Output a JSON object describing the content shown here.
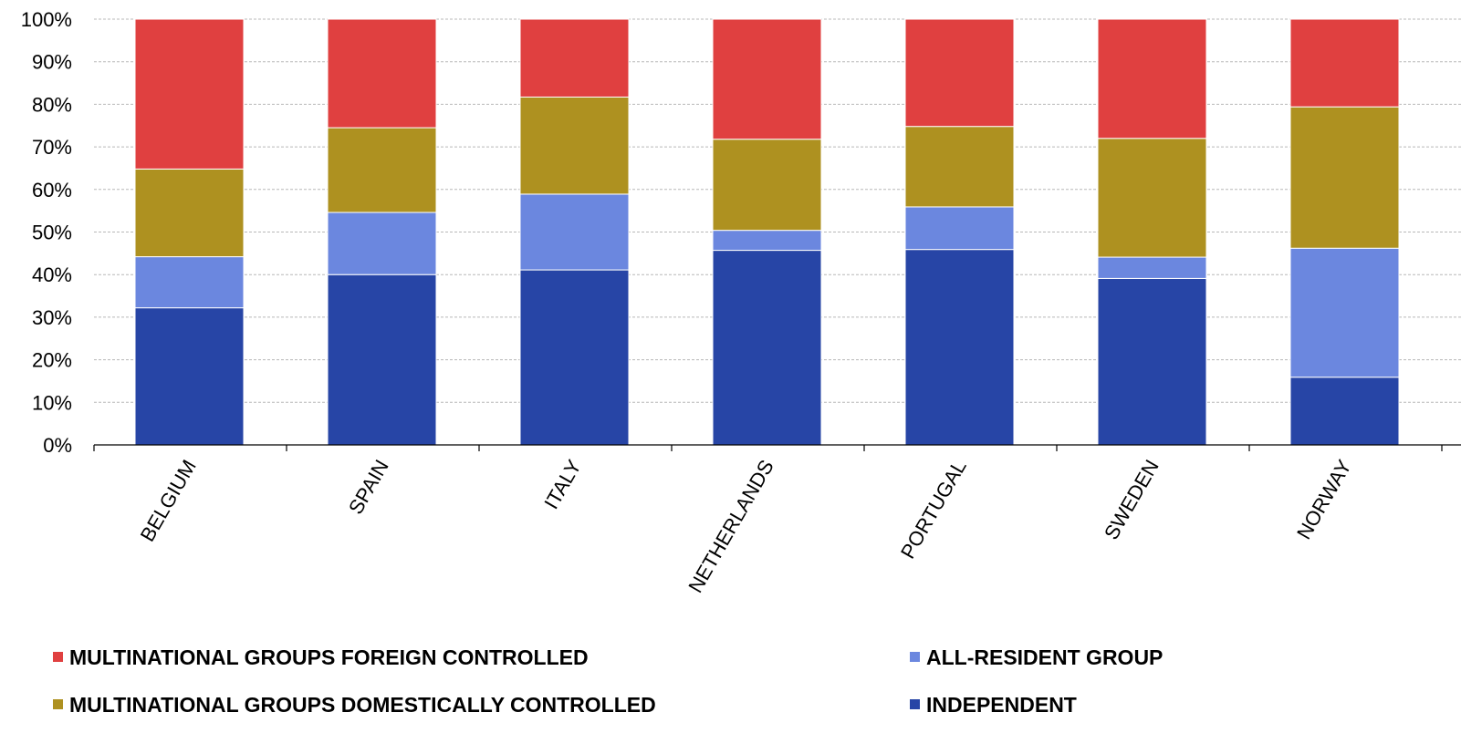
{
  "chart_data": {
    "type": "bar",
    "stacked": true,
    "title": "",
    "xlabel": "",
    "ylabel": "",
    "ylim": [
      0,
      100
    ],
    "y_ticks": [
      "0%",
      "10%",
      "20%",
      "30%",
      "40%",
      "50%",
      "60%",
      "70%",
      "80%",
      "90%",
      "100%"
    ],
    "grid": "horizontal dashed",
    "legend_position": "bottom",
    "categories": [
      "BELGIUM",
      "SPAIN",
      "ITALY",
      "NETHERLANDS",
      "PORTUGAL",
      "SWEDEN",
      "NORWAY"
    ],
    "series": [
      {
        "name": "INDEPENDENT",
        "color": "#2745a6",
        "values": [
          32.2,
          40.0,
          41.1,
          45.7,
          45.9,
          39.1,
          15.9
        ]
      },
      {
        "name": "ALL-RESIDENT GROUP",
        "color": "#6b87df",
        "values": [
          12.0,
          14.6,
          17.8,
          4.7,
          10.0,
          5.0,
          30.3
        ]
      },
      {
        "name": "MULTINATIONAL GROUPS DOMESTICALLY CONTROLLED",
        "color": "#ae9120",
        "values": [
          20.6,
          19.9,
          22.8,
          21.4,
          18.9,
          27.9,
          33.2
        ]
      },
      {
        "name": "MULTINATIONAL GROUPS FOREIGN CONTROLLED",
        "color": "#e04040",
        "values": [
          35.2,
          25.5,
          18.3,
          28.2,
          25.2,
          28.0,
          20.6
        ]
      }
    ],
    "legend": [
      {
        "name": "MULTINATIONAL GROUPS FOREIGN CONTROLLED",
        "color": "#e04040"
      },
      {
        "name": "ALL-RESIDENT GROUP",
        "color": "#6b87df"
      },
      {
        "name": "MULTINATIONAL GROUPS DOMESTICALLY CONTROLLED",
        "color": "#ae9120"
      },
      {
        "name": "INDEPENDENT",
        "color": "#2745a6"
      }
    ]
  }
}
